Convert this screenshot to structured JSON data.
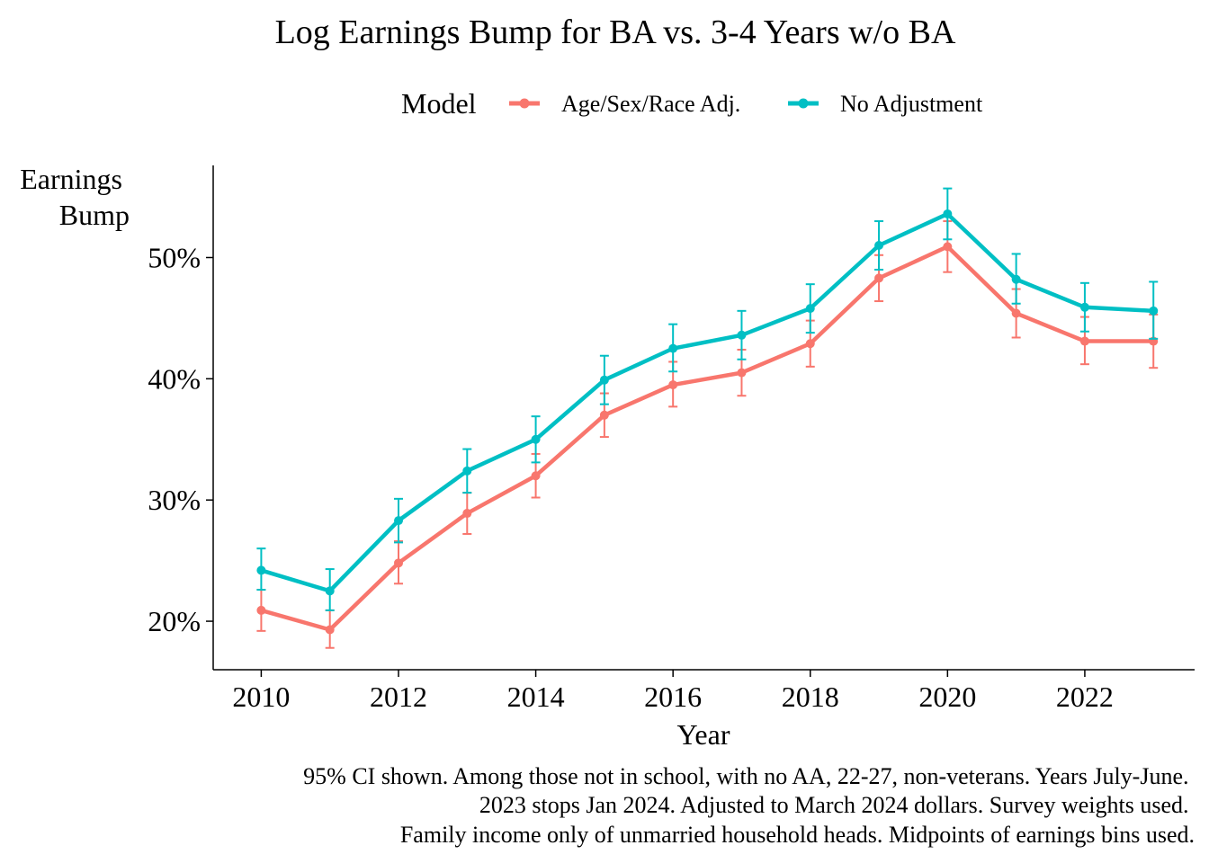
{
  "chart_data": {
    "type": "line",
    "title": "Log Earnings Bump for BA vs. 3-4 Years w/o BA",
    "xlabel": "Year",
    "ylabel_lines": [
      "Earnings",
      "Bump"
    ],
    "legend": {
      "title": "Model",
      "position": "top",
      "entries": [
        "Age/Sex/Race Adj.",
        "No Adjustment"
      ]
    },
    "x": [
      2010,
      2011,
      2012,
      2013,
      2014,
      2015,
      2016,
      2017,
      2018,
      2019,
      2020,
      2021,
      2022,
      2023
    ],
    "xticks": [
      2010,
      2012,
      2014,
      2016,
      2018,
      2020,
      2022
    ],
    "yticks": [
      20,
      30,
      40,
      50
    ],
    "ytick_labels": [
      "20%",
      "30%",
      "40%",
      "50%"
    ],
    "xlim": [
      2009.3,
      2023.6
    ],
    "ylim": [
      16.0,
      57.6
    ],
    "grid": false,
    "error_bars": "95% CI",
    "series": [
      {
        "name": "Age/Sex/Race Adj.",
        "color": "#F8766D",
        "values": [
          20.9,
          19.3,
          24.8,
          28.9,
          32.0,
          37.0,
          39.5,
          40.5,
          42.9,
          48.3,
          50.9,
          45.4,
          43.1,
          43.1
        ],
        "lower": [
          19.2,
          17.8,
          23.1,
          27.2,
          30.2,
          35.2,
          37.7,
          38.6,
          41.0,
          46.4,
          48.8,
          43.4,
          41.2,
          40.9
        ],
        "upper": [
          22.6,
          20.9,
          26.6,
          30.6,
          33.8,
          38.8,
          41.4,
          42.4,
          44.8,
          50.2,
          53.0,
          47.4,
          45.1,
          45.3
        ]
      },
      {
        "name": "No Adjustment",
        "color": "#00BFC4",
        "values": [
          24.2,
          22.5,
          28.3,
          32.4,
          35.0,
          39.9,
          42.5,
          43.6,
          45.8,
          51.0,
          53.6,
          48.2,
          45.9,
          45.6
        ],
        "lower": [
          22.6,
          20.9,
          26.5,
          30.6,
          33.1,
          37.9,
          40.6,
          41.6,
          43.8,
          49.0,
          51.5,
          46.2,
          43.9,
          43.3
        ],
        "upper": [
          26.0,
          24.3,
          30.1,
          34.2,
          36.9,
          41.9,
          44.5,
          45.6,
          47.8,
          53.0,
          55.7,
          50.3,
          47.9,
          48.0
        ]
      }
    ],
    "caption": [
      "95% CI shown. Among those not in school, with no AA, 22-27, non-veterans. Years July-June.",
      "2023 stops Jan 2024. Adjusted to March 2024 dollars. Survey weights used.",
      "Family income only of unmarried household heads. Midpoints of earnings bins used."
    ]
  }
}
